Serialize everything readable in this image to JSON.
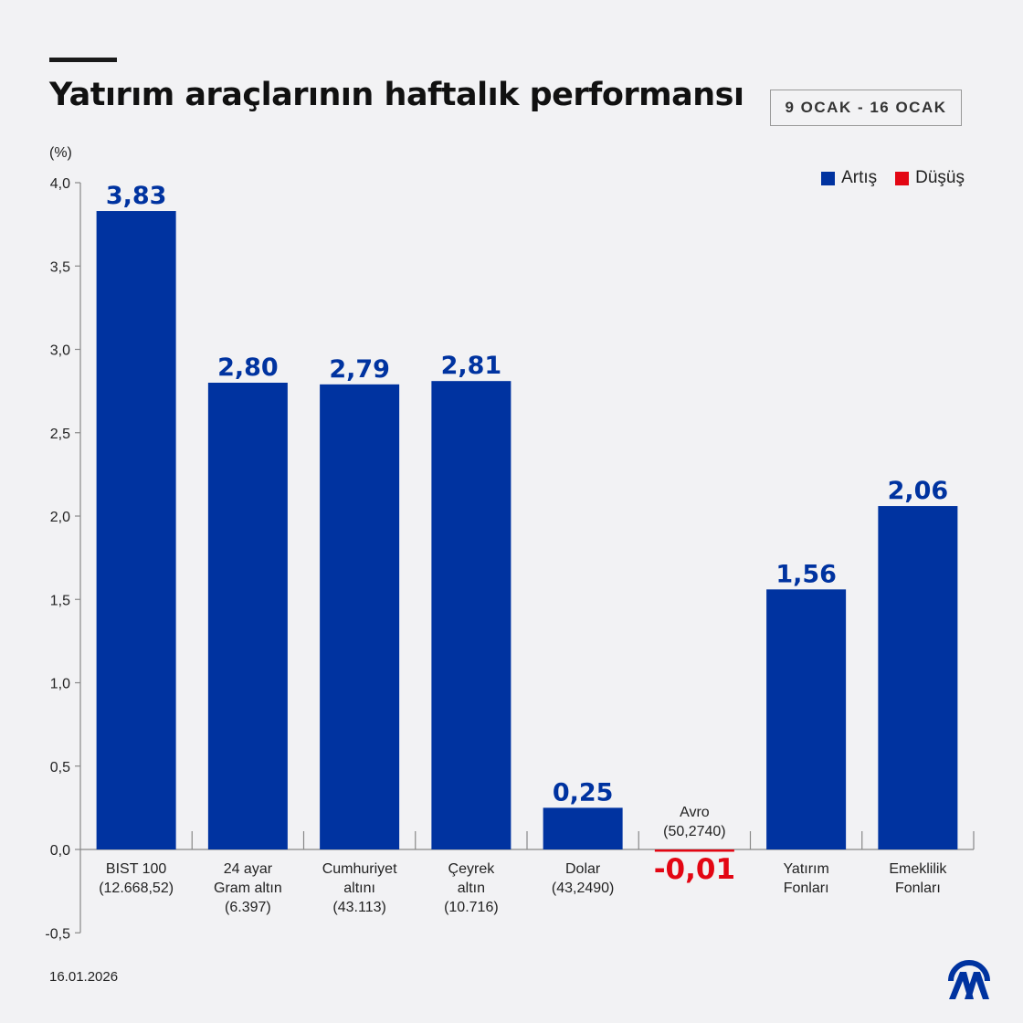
{
  "header": {
    "title": "Yatırım araçlarının haftalık performansı",
    "date_range": "9 OCAK - 16 OCAK"
  },
  "footer": {
    "date": "16.01.2026",
    "logo_text": "AA"
  },
  "colors": {
    "increase": "#0033a0",
    "decrease": "#e30613",
    "background": "#f2f2f4"
  },
  "chart_data": {
    "type": "bar",
    "ylabel": "(%)",
    "ylim": [
      -0.5,
      4.0
    ],
    "yticks": [
      "4,0",
      "3,5",
      "3,0",
      "2,5",
      "2,0",
      "1,5",
      "1,0",
      "0,5",
      "0,0",
      "-0,5"
    ],
    "ytick_values": [
      4.0,
      3.5,
      3.0,
      2.5,
      2.0,
      1.5,
      1.0,
      0.5,
      0.0,
      -0.5
    ],
    "grid": false,
    "legend": {
      "position": "top-right",
      "entries": [
        {
          "label": "Artış",
          "color": "#0033a0"
        },
        {
          "label": "Düşüş",
          "color": "#e30613"
        }
      ]
    },
    "categories": [
      [
        "BIST 100",
        "(12.668,52)"
      ],
      [
        "24 ayar",
        "Gram altın",
        "(6.397)"
      ],
      [
        "Cumhuriyet",
        "altını",
        "(43.113)"
      ],
      [
        "Çeyrek",
        "altın",
        "(10.716)"
      ],
      [
        "Dolar",
        "(43,2490)"
      ],
      [
        "Avro",
        "(50,2740)"
      ],
      [
        "Yatırım",
        "Fonları"
      ],
      [
        "Emeklilik",
        "Fonları"
      ]
    ],
    "values": [
      3.83,
      2.8,
      2.79,
      2.81,
      0.25,
      -0.01,
      1.56,
      2.06
    ],
    "data_labels": [
      "3,83",
      "2,80",
      "2,79",
      "2,81",
      "0,25",
      "-0,01",
      "1,56",
      "2,06"
    ]
  }
}
